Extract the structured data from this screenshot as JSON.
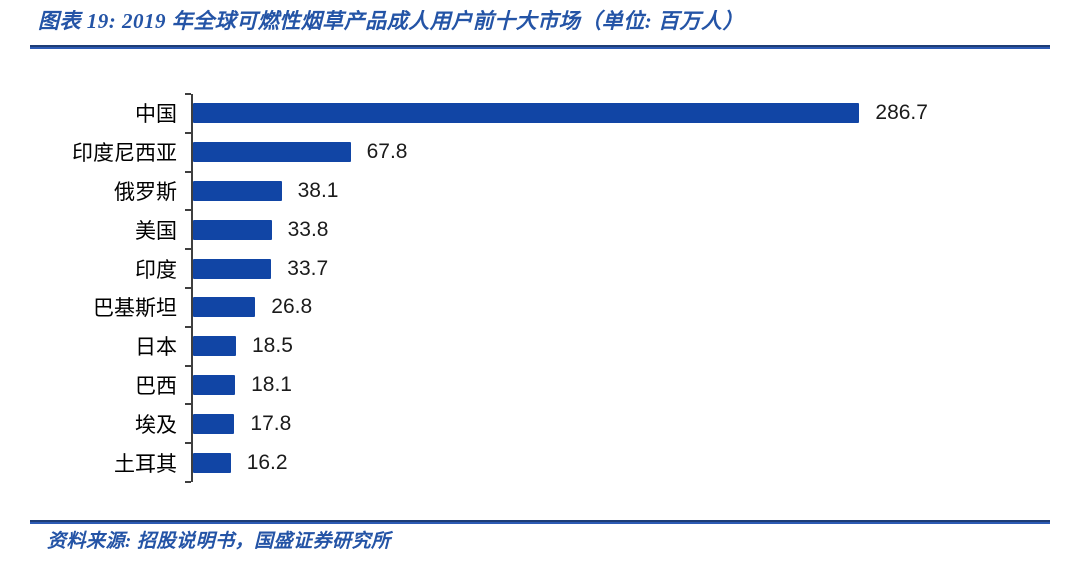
{
  "figure": {
    "title": "图表 19: 2019 年全球可燃性烟草产品成人用户前十大市场（单位: 百万人）",
    "source": "资料来源: 招股说明书，国盛证券研究所"
  },
  "chart_data": {
    "type": "bar",
    "orientation": "horizontal",
    "title": "2019 年全球可燃性烟草产品成人用户前十大市场",
    "unit": "百万人",
    "categories": [
      "中国",
      "印度尼西亚",
      "俄罗斯",
      "美国",
      "印度",
      "巴基斯坦",
      "日本",
      "巴西",
      "埃及",
      "土耳其"
    ],
    "values": [
      286.7,
      67.8,
      38.1,
      33.8,
      33.7,
      26.8,
      18.5,
      18.1,
      17.8,
      16.2
    ],
    "value_labels": [
      "286.7",
      "67.8",
      "38.1",
      "33.8",
      "33.7",
      "26.8",
      "18.5",
      "18.1",
      "17.8",
      "16.2"
    ],
    "xlim": [
      0,
      370
    ],
    "grid": false,
    "legend": false,
    "bar_color": "#1145A5",
    "value_label_color": "#1b1b1b",
    "axis_color": "#3f3f3f"
  },
  "colors": {
    "accent_blue": "#2454A6",
    "divider_dark": "#1d3d76",
    "divider_light": "#2d5bb4"
  }
}
